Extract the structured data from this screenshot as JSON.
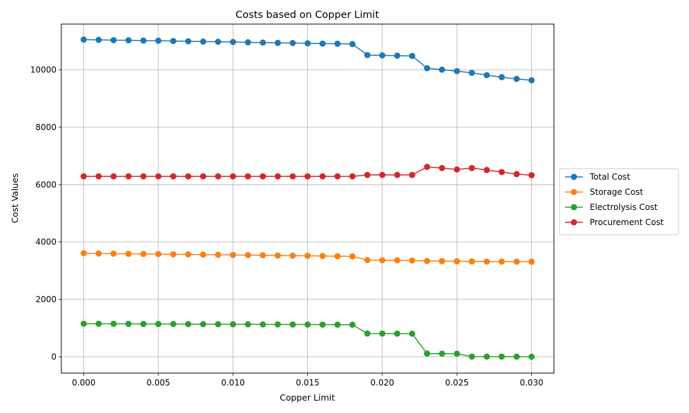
{
  "chart_data": {
    "type": "line",
    "title": "Costs based on Copper Limit",
    "xlabel": "Copper Limit",
    "ylabel": "Cost Values",
    "xlim": [
      -0.0015,
      0.0315
    ],
    "ylim": [
      -570,
      11600
    ],
    "xticks": [
      0.0,
      0.005,
      0.01,
      0.015,
      0.02,
      0.025,
      0.03
    ],
    "xtick_labels": [
      "0.000",
      "0.005",
      "0.010",
      "0.015",
      "0.020",
      "0.025",
      "0.030"
    ],
    "yticks": [
      0,
      2000,
      4000,
      6000,
      8000,
      10000
    ],
    "ytick_labels": [
      "0",
      "2000",
      "4000",
      "6000",
      "8000",
      "10000"
    ],
    "grid": true,
    "legend_position": "center-right-outside",
    "x": [
      0.0,
      0.001,
      0.002,
      0.003,
      0.004,
      0.005,
      0.006,
      0.007,
      0.008,
      0.009,
      0.01,
      0.011,
      0.012,
      0.013,
      0.014,
      0.015,
      0.016,
      0.017,
      0.018,
      0.019,
      0.02,
      0.021,
      0.022,
      0.023,
      0.024,
      0.025,
      0.026,
      0.027,
      0.028,
      0.029,
      0.03
    ],
    "series": [
      {
        "name": "Total Cost",
        "color": "#1f77b4",
        "values": [
          11060,
          11050,
          11040,
          11035,
          11025,
          11020,
          11010,
          11000,
          10990,
          10985,
          10975,
          10965,
          10955,
          10945,
          10940,
          10930,
          10920,
          10915,
          10905,
          10520,
          10510,
          10500,
          10490,
          10060,
          10010,
          9960,
          9900,
          9820,
          9750,
          9690,
          9640
        ]
      },
      {
        "name": "Storage Cost",
        "color": "#ff7f0e",
        "values": [
          3610,
          3600,
          3595,
          3590,
          3585,
          3580,
          3575,
          3570,
          3560,
          3555,
          3550,
          3545,
          3540,
          3530,
          3525,
          3520,
          3515,
          3505,
          3500,
          3370,
          3365,
          3360,
          3355,
          3340,
          3335,
          3330,
          3325,
          3320,
          3318,
          3316,
          3315
        ]
      },
      {
        "name": "Electrolysis Cost",
        "color": "#2ca02c",
        "values": [
          1150,
          1150,
          1148,
          1146,
          1144,
          1142,
          1140,
          1138,
          1136,
          1134,
          1132,
          1130,
          1128,
          1126,
          1124,
          1122,
          1120,
          1118,
          1116,
          810,
          808,
          806,
          804,
          110,
          108,
          106,
          5,
          4,
          3,
          2,
          0
        ]
      },
      {
        "name": "Procurement Cost",
        "color": "#d62728",
        "values": [
          6290,
          6290,
          6290,
          6290,
          6290,
          6290,
          6290,
          6290,
          6290,
          6290,
          6290,
          6290,
          6290,
          6290,
          6290,
          6290,
          6290,
          6290,
          6290,
          6340,
          6340,
          6340,
          6340,
          6620,
          6580,
          6530,
          6580,
          6510,
          6440,
          6370,
          6330
        ]
      }
    ]
  }
}
